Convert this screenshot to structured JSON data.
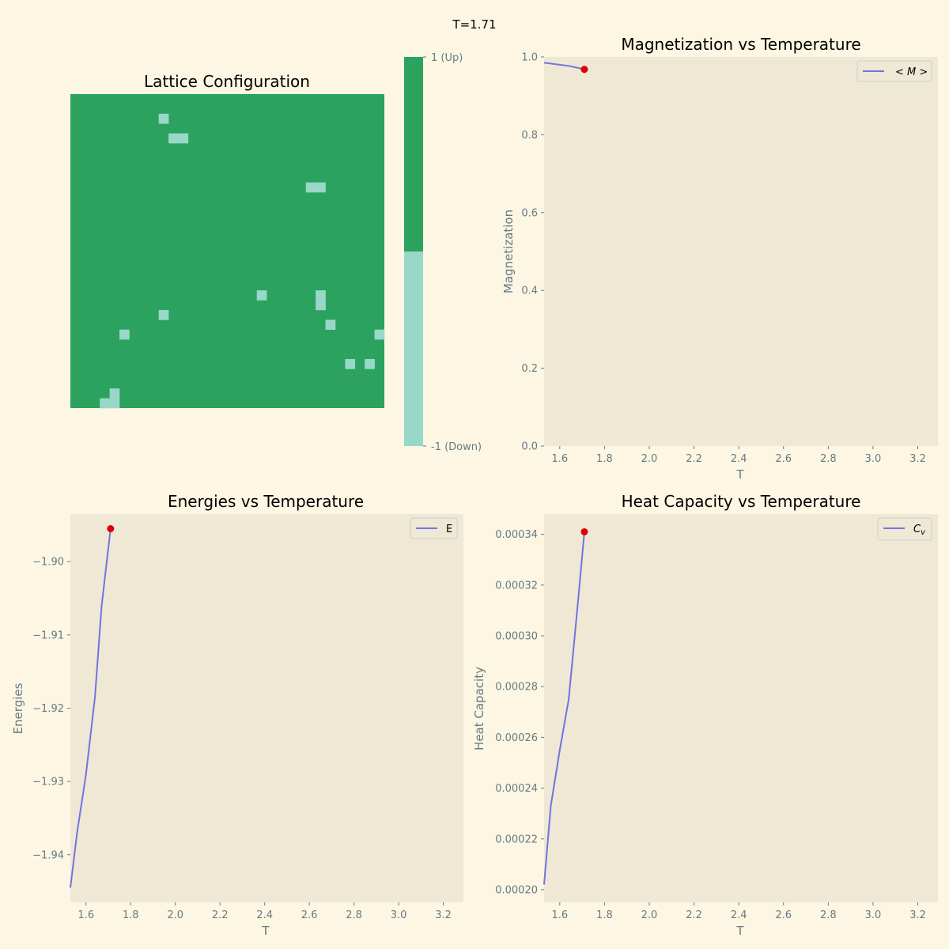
{
  "figure": {
    "suptitle": "T=1.71",
    "background": "#fdf6e3",
    "axes_background": "#eee8d5",
    "tick_color": "#657b83",
    "line_color": "#7373e0",
    "marker_color": "#e00000"
  },
  "chart_data": [
    {
      "type": "heatmap",
      "title": "Lattice Configuration",
      "grid_size": [
        32,
        32
      ],
      "colors": {
        "up": "#2ca25f",
        "down": "#99d8c9"
      },
      "down_cells": [
        [
          2,
          9
        ],
        [
          4,
          10
        ],
        [
          4,
          11
        ],
        [
          9,
          24
        ],
        [
          9,
          25
        ],
        [
          20,
          19
        ],
        [
          20,
          25
        ],
        [
          21,
          25
        ],
        [
          22,
          9
        ],
        [
          23,
          26
        ],
        [
          24,
          5
        ],
        [
          24,
          31
        ],
        [
          27,
          28
        ],
        [
          27,
          30
        ],
        [
          30,
          4
        ],
        [
          31,
          3
        ],
        [
          31,
          4
        ]
      ],
      "colorbar": {
        "tick_labels": [
          "1 (Up)",
          "-1 (Down)"
        ]
      }
    },
    {
      "type": "line",
      "title": "Magnetization vs Temperature",
      "xlabel": "T",
      "ylabel": "Magnetization",
      "xlim": [
        1.53,
        3.29
      ],
      "ylim": [
        0.0,
        1.0
      ],
      "xticks": [
        "1.6",
        "1.8",
        "2.0",
        "2.2",
        "2.4",
        "2.6",
        "2.8",
        "3.0",
        "3.2"
      ],
      "yticks": [
        "0.0",
        "0.2",
        "0.4",
        "0.6",
        "0.8",
        "1.0"
      ],
      "legend": "$< M >$",
      "legend_label": "< M >",
      "series": [
        {
          "name": "< M >",
          "x": [
            1.53,
            1.56,
            1.6,
            1.64,
            1.68,
            1.71
          ],
          "y": [
            0.985,
            0.983,
            0.98,
            0.977,
            0.972,
            0.968
          ]
        }
      ],
      "current_point": {
        "x": 1.71,
        "y": 0.968
      }
    },
    {
      "type": "line",
      "title": "Energies vs Temperature",
      "xlabel": "T",
      "ylabel": "Energies",
      "xlim": [
        1.53,
        3.29
      ],
      "ylim": [
        -1.9465,
        -1.8935
      ],
      "xticks": [
        "1.6",
        "1.8",
        "2.0",
        "2.2",
        "2.4",
        "2.6",
        "2.8",
        "3.0",
        "3.2"
      ],
      "yticks": [
        "−1.94",
        "−1.93",
        "−1.92",
        "−1.91",
        "−1.90"
      ],
      "legend_label": "E",
      "series": [
        {
          "name": "E",
          "x": [
            1.53,
            1.56,
            1.6,
            1.64,
            1.67,
            1.71
          ],
          "y": [
            -1.9445,
            -1.937,
            -1.929,
            -1.9185,
            -1.906,
            -1.8955
          ]
        }
      ],
      "current_point": {
        "x": 1.71,
        "y": -1.8955
      }
    },
    {
      "type": "line",
      "title": "Heat Capacity vs Temperature",
      "xlabel": "T",
      "ylabel": "Heat Capacity",
      "xlim": [
        1.53,
        3.29
      ],
      "ylim": [
        0.000195,
        0.000348
      ],
      "xticks": [
        "1.6",
        "1.8",
        "2.0",
        "2.2",
        "2.4",
        "2.6",
        "2.8",
        "3.0",
        "3.2"
      ],
      "yticks": [
        "0.00020",
        "0.00022",
        "0.00024",
        "0.00026",
        "0.00028",
        "0.00030",
        "0.00032",
        "0.00034"
      ],
      "legend_label": "Cv",
      "series": [
        {
          "name": "Cv",
          "x": [
            1.53,
            1.56,
            1.6,
            1.64,
            1.68,
            1.71
          ],
          "y": [
            0.000202,
            0.000233,
            0.000255,
            0.000275,
            0.000312,
            0.000341
          ]
        }
      ],
      "current_point": {
        "x": 1.71,
        "y": 0.000341
      }
    }
  ]
}
